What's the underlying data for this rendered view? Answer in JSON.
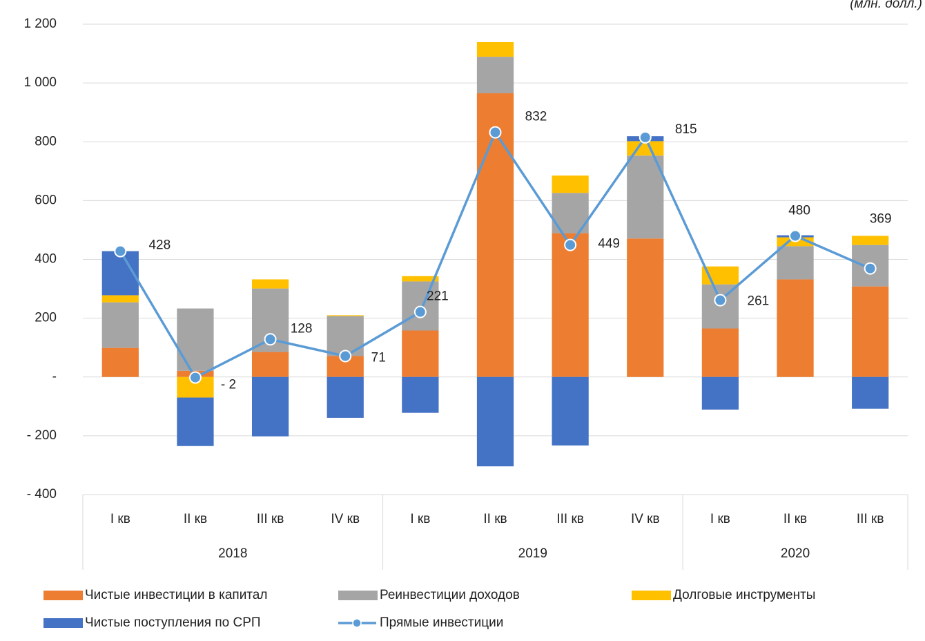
{
  "chart_data": {
    "type": "bar",
    "stacked": true,
    "unit_note": "(млн. долл.)",
    "categories": [
      "I кв",
      "II кв",
      "III кв",
      "IV кв",
      "I кв",
      "II кв",
      "III кв",
      "IV кв",
      "I кв",
      "II кв",
      "III кв"
    ],
    "category_groups": [
      {
        "label": "2018",
        "span": 4
      },
      {
        "label": "2019",
        "span": 4
      },
      {
        "label": "2020",
        "span": 3
      }
    ],
    "series": [
      {
        "name": "Чистые инвестиции в капитал",
        "color": "#ed7d31",
        "values": [
          99,
          21,
          85,
          71,
          158,
          965,
          489,
          471,
          165,
          332,
          308
        ]
      },
      {
        "name": "Реинвестиции доходов",
        "color": "#a5a5a5",
        "values": [
          155,
          212,
          216,
          136,
          167,
          124,
          137,
          282,
          150,
          113,
          141
        ]
      },
      {
        "name": "Долговые инструменты",
        "color": "#ffc000",
        "values": [
          24,
          -70,
          31,
          3,
          18,
          50,
          59,
          49,
          61,
          30,
          31
        ]
      },
      {
        "name": "Чистые поступления по СРП",
        "color": "#4472c4",
        "values": [
          150,
          -165,
          -202,
          -139,
          -122,
          -304,
          -233,
          17,
          -111,
          7,
          -108
        ]
      },
      {
        "name": "Прямые инвестиции",
        "type": "line",
        "color": "#5b9bd5",
        "values": [
          428,
          -2,
          128,
          71,
          221,
          832,
          449,
          815,
          261,
          480,
          369
        ],
        "value_labels": [
          "428",
          "- 2",
          "128",
          "71",
          "221",
          "832",
          "449",
          "815",
          "261",
          "480",
          "369"
        ]
      }
    ],
    "ylim": [
      -400,
      1200
    ],
    "yticks": [
      {
        "value": -400,
        "label": "- 400"
      },
      {
        "value": -200,
        "label": "- 200"
      },
      {
        "value": 0,
        "label": "-"
      },
      200,
      400,
      600,
      800,
      {
        "value": 1000,
        "label": "1 000"
      },
      {
        "value": 1200,
        "label": "1 200"
      }
    ],
    "grid": true,
    "legend": "bottom"
  }
}
